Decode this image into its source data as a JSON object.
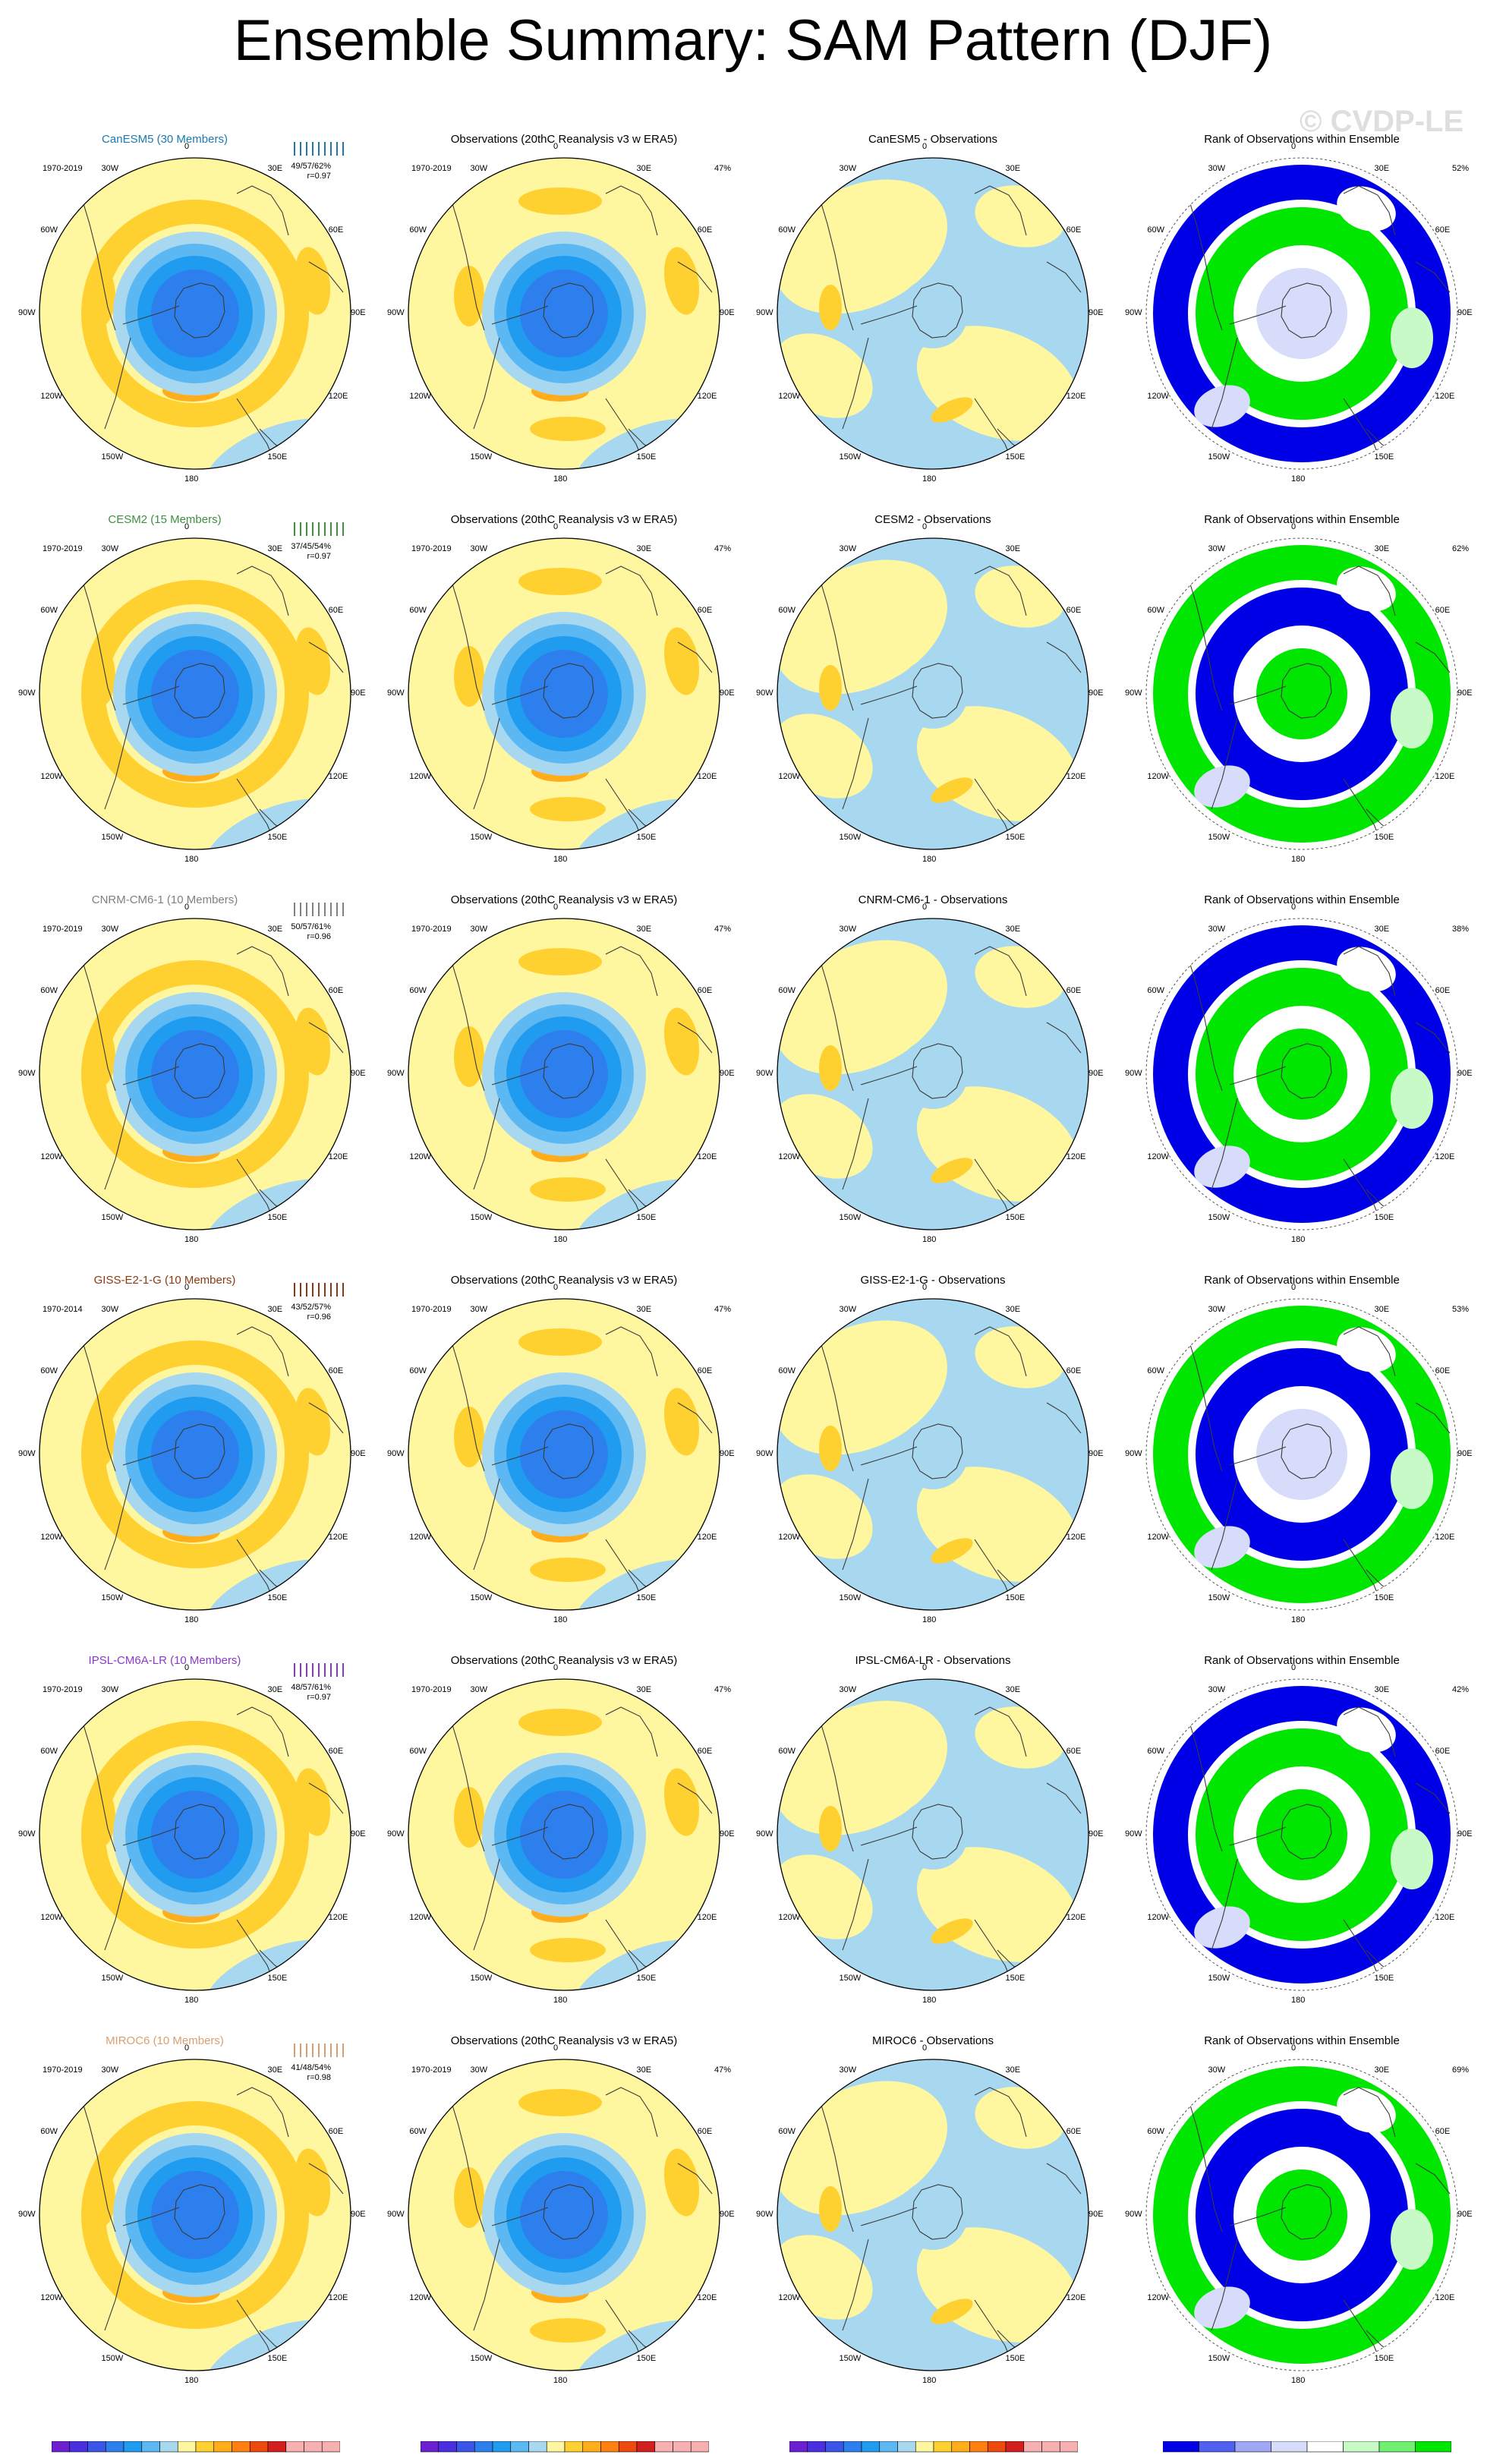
{
  "title": "Ensemble Summary: SAM Pattern (DJF)",
  "watermark": "© CVDP-LE",
  "colors": {
    "neg7": "#6c1fd0",
    "neg6": "#4a2fe0",
    "neg5": "#3a55e8",
    "neg4": "#2e7fee",
    "neg3": "#1f9cf0",
    "neg2": "#5cb8f2",
    "neg1": "#a8d8f0",
    "pos1": "#fff6a0",
    "pos2": "#ffd130",
    "pos3": "#ffad1a",
    "pos4": "#ff7f10",
    "pos5": "#ee4a10",
    "pos6": "#d41f1f",
    "pos7": "#f7b0b0",
    "rank_blue": "#0000e6",
    "rank_lightblue": "#d6dcfa",
    "rank_green": "#00e600",
    "rank_lightgreen": "#c8fac8"
  },
  "lon_labels": [
    "0",
    "30E",
    "60E",
    "90E",
    "120E",
    "150E",
    "180",
    "150W",
    "120W",
    "90W",
    "60W",
    "30W"
  ],
  "rows": [
    {
      "model": "CanESM5 (30 Members)",
      "model_color": "#1a7ab0",
      "period": "1970-2019",
      "stats1": "49/57/62%",
      "stats2": "r=0.97",
      "obs_title": "Observations (20thC Reanalysis v3 w ERA5)",
      "obs_period": "1970-2019",
      "obs_pct": "47%",
      "diff_title": "CanESM5 - Observations",
      "rank_title": "Rank of Observations within Ensemble",
      "rank_pct": "52%"
    },
    {
      "model": "CESM2 (15 Members)",
      "model_color": "#3f8f3f",
      "period": "1970-2019",
      "stats1": "37/45/54%",
      "stats2": "r=0.97",
      "obs_title": "Observations (20thC Reanalysis v3 w ERA5)",
      "obs_period": "1970-2019",
      "obs_pct": "47%",
      "diff_title": "CESM2 - Observations",
      "rank_title": "Rank of Observations within Ensemble",
      "rank_pct": "62%"
    },
    {
      "model": "CNRM-CM6-1 (10 Members)",
      "model_color": "#808080",
      "period": "1970-2019",
      "stats1": "50/57/61%",
      "stats2": "r=0.96",
      "obs_title": "Observations (20thC Reanalysis v3 w ERA5)",
      "obs_period": "1970-2019",
      "obs_pct": "47%",
      "diff_title": "CNRM-CM6-1 - Observations",
      "rank_title": "Rank of Observations within Ensemble",
      "rank_pct": "38%"
    },
    {
      "model": "GISS-E2-1-G (10 Members)",
      "model_color": "#8b3a10",
      "period": "1970-2014",
      "stats1": "43/52/57%",
      "stats2": "r=0.96",
      "obs_title": "Observations (20thC Reanalysis v3 w ERA5)",
      "obs_period": "1970-2019",
      "obs_pct": "47%",
      "diff_title": "GISS-E2-1-G - Observations",
      "rank_title": "Rank of Observations within Ensemble",
      "rank_pct": "53%"
    },
    {
      "model": "IPSL-CM6A-LR (10 Members)",
      "model_color": "#8a3ac8",
      "period": "1970-2019",
      "stats1": "48/57/61%",
      "stats2": "r=0.97",
      "obs_title": "Observations (20thC Reanalysis v3 w ERA5)",
      "obs_period": "1970-2019",
      "obs_pct": "47%",
      "diff_title": "IPSL-CM6A-LR - Observations",
      "rank_title": "Rank of Observations within Ensemble",
      "rank_pct": "42%"
    },
    {
      "model": "MIROC6 (10 Members)",
      "model_color": "#d8a070",
      "period": "1970-2019",
      "stats1": "41/48/54%",
      "stats2": "r=0.98",
      "obs_title": "Observations (20thC Reanalysis v3 w ERA5)",
      "obs_period": "1970-2019",
      "obs_pct": "47%",
      "diff_title": "MIROC6 - Observations",
      "rank_title": "Rank of Observations within Ensemble",
      "rank_pct": "69%"
    }
  ],
  "legend_hpa": {
    "ticks": [
      "-7",
      "-6",
      "-5",
      "-4",
      "-3",
      "-2",
      "-1",
      "0",
      "1",
      "2",
      "3",
      "4",
      "5",
      "6",
      "7"
    ],
    "unit": "hPa"
  },
  "legend_rank": {
    "ticks": [
      "0",
      "5",
      "10",
      "20",
      "80",
      "90",
      "95",
      "100"
    ],
    "unit": "%"
  },
  "chart_data": {
    "type": "heatmap",
    "title": "Ensemble Summary: SAM Pattern (DJF)",
    "projection": "south polar stereographic",
    "columns": [
      "ensemble mean pattern",
      "observations",
      "model - observations",
      "rank of observations within ensemble"
    ],
    "contour_levels_hPa": [
      -7,
      -6,
      -5,
      -4,
      -3,
      -2,
      -1,
      0,
      1,
      2,
      3,
      4,
      5,
      6,
      7
    ],
    "rank_levels_percent": [
      0,
      5,
      10,
      20,
      80,
      90,
      95,
      100
    ],
    "models": [
      "CanESM5",
      "CESM2",
      "CNRM-CM6-1",
      "GISS-E2-1-G",
      "IPSL-CM6A-LR",
      "MIROC6"
    ],
    "members": [
      30,
      15,
      10,
      10,
      10,
      10
    ],
    "pattern_correlation": [
      0.97,
      0.97,
      0.96,
      0.96,
      0.97,
      0.98
    ],
    "variance_explained_min_mean_max": [
      "49/57/62%",
      "37/45/54%",
      "50/57/61%",
      "43/52/57%",
      "48/57/61%",
      "41/48/54%"
    ],
    "observed_variance_explained": "47%",
    "rank_percent_area": [
      "52%",
      "62%",
      "38%",
      "53%",
      "42%",
      "69%"
    ]
  }
}
